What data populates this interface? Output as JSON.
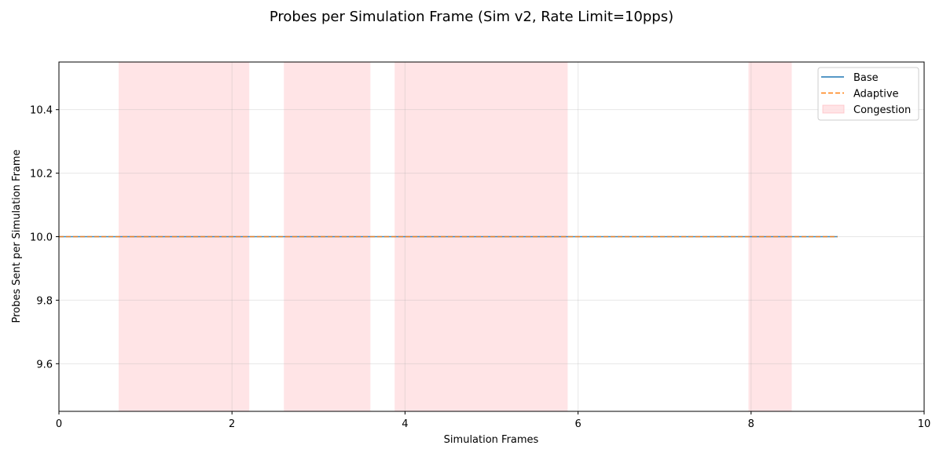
{
  "chart_data": {
    "type": "line",
    "title": "Probes per Simulation Frame (Sim v2, Rate Limit=10pps)",
    "xlabel": "Simulation Frames",
    "ylabel": "Probes Sent per Simulation Frame",
    "xlim": [
      0,
      10
    ],
    "ylim": [
      9.45,
      10.55
    ],
    "xticks": [
      0,
      2,
      4,
      6,
      8,
      10
    ],
    "xtick_labels": [
      "0",
      "2",
      "4",
      "6",
      "8",
      "10"
    ],
    "yticks": [
      9.6,
      9.8,
      10.0,
      10.2,
      10.4
    ],
    "ytick_labels": [
      "9.6",
      "9.8",
      "10.0",
      "10.2",
      "10.4"
    ],
    "grid": true,
    "legend_position": "top-right",
    "series": [
      {
        "name": "Base",
        "style": "solid",
        "color": "#1f77b4",
        "x": [
          0,
          9
        ],
        "y": [
          10.0,
          10.0
        ]
      },
      {
        "name": "Adaptive",
        "style": "dashed",
        "color": "#ff7f0e",
        "x": [
          0,
          9
        ],
        "y": [
          10.0,
          10.0
        ]
      }
    ],
    "shaded_regions": {
      "name": "Congestion",
      "color": "#ffb3b8",
      "spans": [
        [
          0.69,
          2.2
        ],
        [
          2.6,
          3.6
        ],
        [
          3.88,
          5.88
        ],
        [
          7.97,
          8.47
        ]
      ]
    }
  }
}
